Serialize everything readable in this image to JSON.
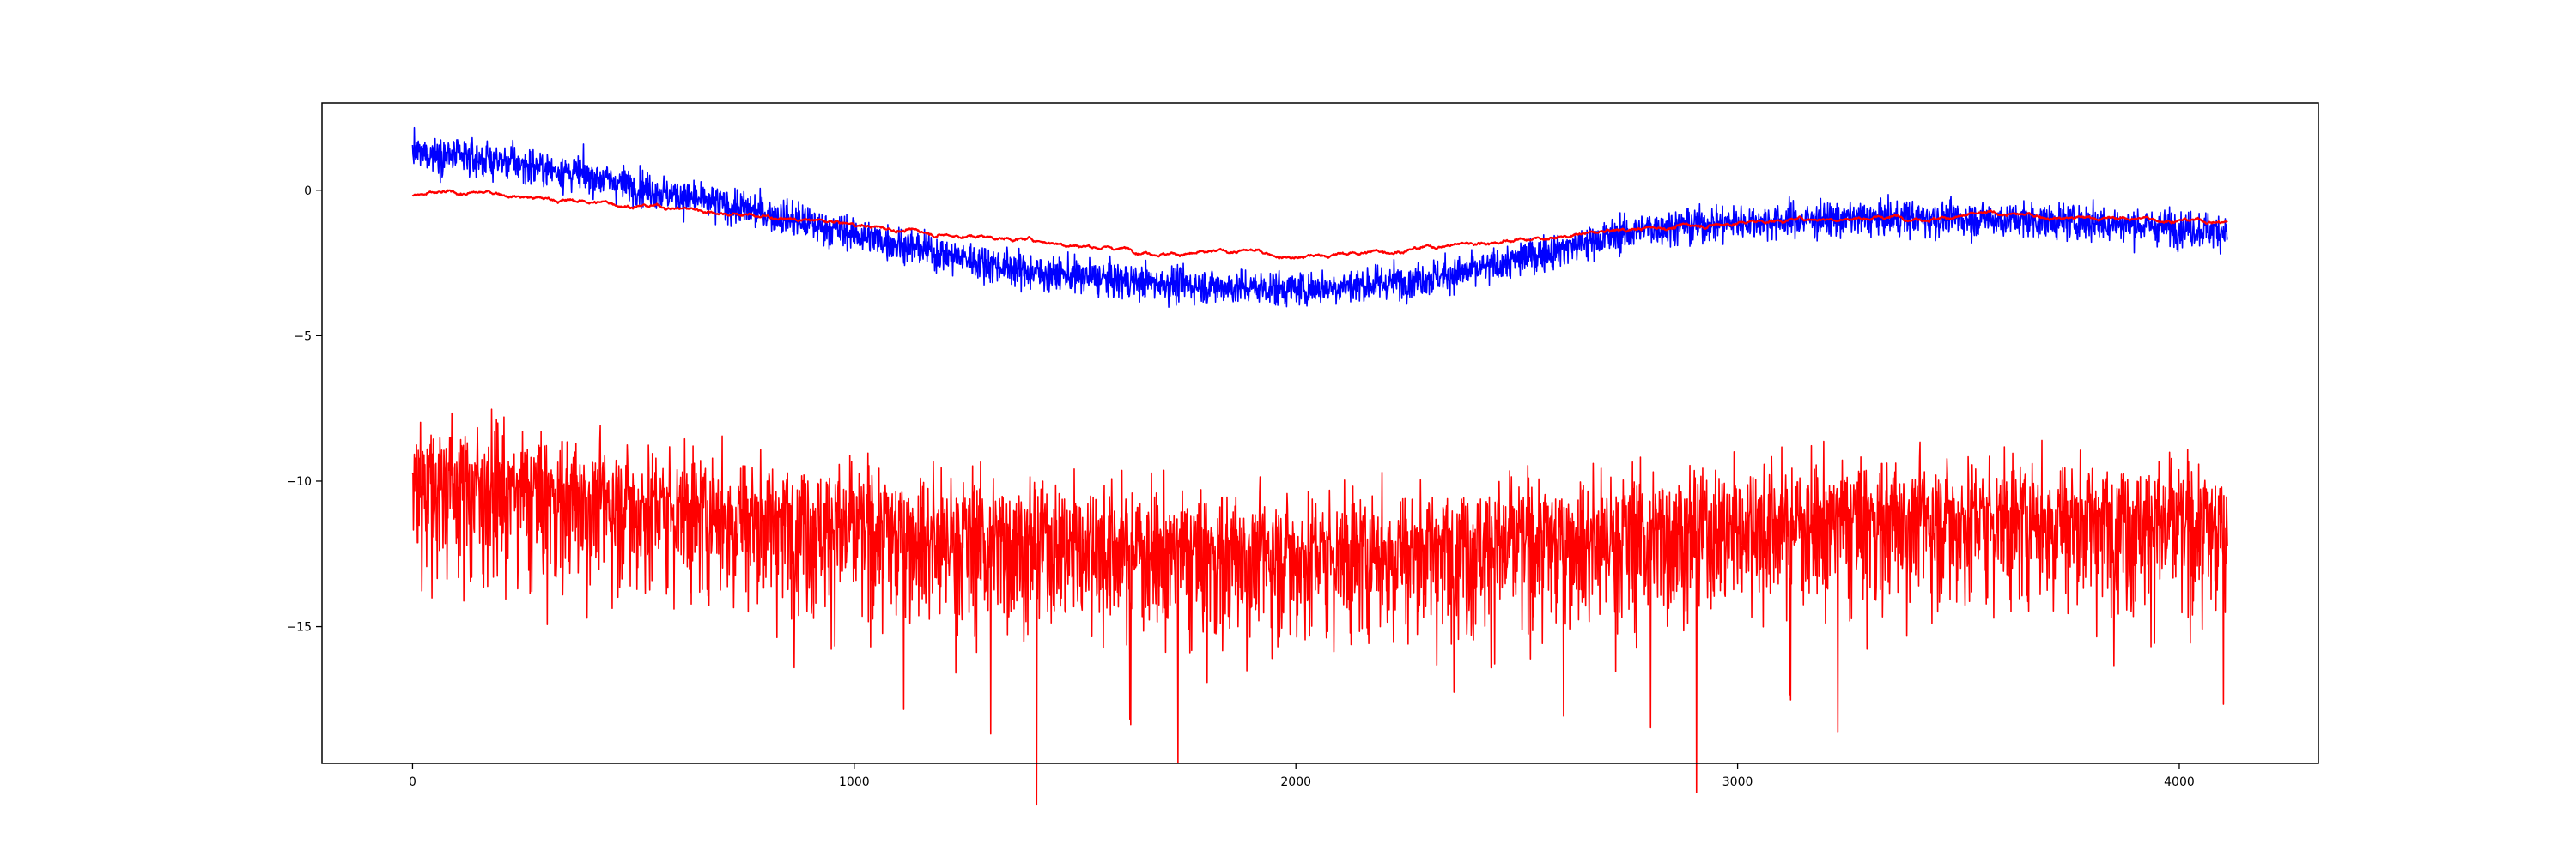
{
  "chart_data": {
    "type": "line",
    "title": "",
    "xlabel": "",
    "ylabel": "",
    "xlim": [
      -205,
      4315
    ],
    "ylim": [
      -19.7,
      3.0
    ],
    "grid": false,
    "legend": "none",
    "x_ticks": [
      0,
      1000,
      2000,
      3000,
      4000
    ],
    "x_tick_labels": [
      "0",
      "1000",
      "2000",
      "3000",
      "4000"
    ],
    "y_ticks": [
      0,
      -5,
      -10,
      -15
    ],
    "y_tick_labels": [
      "0",
      "−5",
      "−10",
      "−15"
    ],
    "n_points": 4110,
    "series": [
      {
        "color": "#0000ff",
        "style": "noisy",
        "noise_sd": 0.3,
        "trend": [
          [
            0,
            1.3
          ],
          [
            200,
            1.0
          ],
          [
            400,
            0.5
          ],
          [
            600,
            -0.2
          ],
          [
            800,
            -0.8
          ],
          [
            1000,
            -1.5
          ],
          [
            1200,
            -2.2
          ],
          [
            1400,
            -2.8
          ],
          [
            1600,
            -3.1
          ],
          [
            1800,
            -3.3
          ],
          [
            2000,
            -3.4
          ],
          [
            2200,
            -3.2
          ],
          [
            2400,
            -2.8
          ],
          [
            2600,
            -2.0
          ],
          [
            2800,
            -1.3
          ],
          [
            3000,
            -1.1
          ],
          [
            3200,
            -1.0
          ],
          [
            3400,
            -0.95
          ],
          [
            3600,
            -1.0
          ],
          [
            3800,
            -1.1
          ],
          [
            4000,
            -1.3
          ],
          [
            4110,
            -1.4
          ]
        ]
      },
      {
        "color": "#ff0000",
        "style": "smooth",
        "trend": [
          [
            0,
            -0.2
          ],
          [
            100,
            -0.15
          ],
          [
            200,
            -0.1
          ],
          [
            300,
            -0.3
          ],
          [
            400,
            -0.4
          ],
          [
            600,
            -0.6
          ],
          [
            800,
            -0.9
          ],
          [
            1000,
            -1.2
          ],
          [
            1200,
            -1.5
          ],
          [
            1400,
            -1.7
          ],
          [
            1600,
            -2.0
          ],
          [
            1800,
            -2.2
          ],
          [
            1900,
            -2.1
          ],
          [
            2000,
            -2.3
          ],
          [
            2200,
            -2.1
          ],
          [
            2400,
            -1.8
          ],
          [
            2600,
            -1.6
          ],
          [
            2800,
            -1.3
          ],
          [
            3000,
            -1.1
          ],
          [
            3200,
            -0.95
          ],
          [
            3400,
            -0.9
          ],
          [
            3600,
            -0.85
          ],
          [
            3800,
            -0.95
          ],
          [
            4000,
            -1.0
          ],
          [
            4110,
            -1.1
          ]
        ]
      },
      {
        "color": "#ff0000",
        "style": "spiky",
        "noise_sd": 1.0,
        "trend": [
          [
            0,
            -9.8
          ],
          [
            200,
            -10.2
          ],
          [
            400,
            -10.6
          ],
          [
            600,
            -10.9
          ],
          [
            800,
            -11.2
          ],
          [
            1000,
            -11.5
          ],
          [
            1200,
            -11.8
          ],
          [
            1400,
            -12.0
          ],
          [
            1600,
            -12.2
          ],
          [
            1800,
            -12.4
          ],
          [
            2000,
            -12.4
          ],
          [
            2200,
            -12.3
          ],
          [
            2400,
            -12.1
          ],
          [
            2600,
            -11.9
          ],
          [
            2800,
            -11.7
          ],
          [
            3000,
            -11.5
          ],
          [
            3200,
            -11.3
          ],
          [
            3400,
            -11.2
          ],
          [
            3600,
            -11.2
          ],
          [
            3800,
            -11.2
          ],
          [
            4000,
            -11.4
          ],
          [
            4110,
            -11.5
          ]
        ]
      }
    ]
  }
}
